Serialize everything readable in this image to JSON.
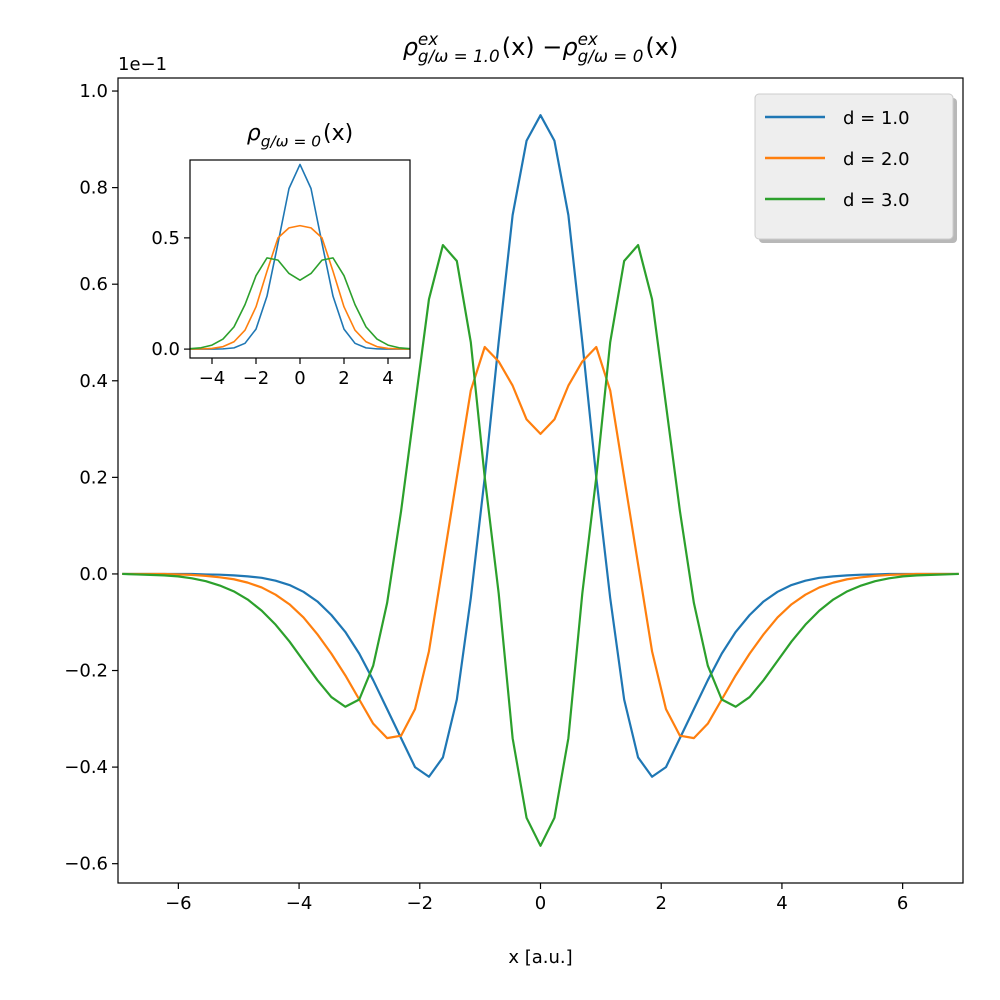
{
  "chart_data": [
    {
      "type": "line",
      "title_parts": [
        {
          "base": "ρ",
          "sup": "ex",
          "sub": "g/ω = 1.0",
          "after": "(x) − "
        },
        {
          "base": "ρ",
          "sup": "ex",
          "sub": "g/ω = 0",
          "after": "(x)"
        }
      ],
      "xlabel": "x [a.u.]",
      "offset_text": "1e−1",
      "xlim": [
        -7,
        7
      ],
      "ylim": [
        -0.64,
        1.027
      ],
      "xticks": [
        {
          "value": -6,
          "label": "−6"
        },
        {
          "value": -4,
          "label": "−4"
        },
        {
          "value": -2,
          "label": "−2"
        },
        0,
        2,
        4,
        6
      ],
      "yticks": [
        {
          "value": -0.6,
          "label": "−0.6"
        },
        {
          "value": -0.4,
          "label": "−0.4"
        },
        {
          "value": -0.2,
          "label": "−0.2"
        },
        {
          "value": 0,
          "label": "0.0"
        },
        0.2,
        0.4,
        0.6,
        0.8,
        {
          "value": 1,
          "label": "1.0"
        }
      ],
      "legend": "upper right",
      "x": [
        -6.93,
        -6.699,
        -6.468,
        -6.237,
        -6.006,
        -5.775,
        -5.544,
        -5.313,
        -5.082,
        -4.851,
        -4.62,
        -4.389,
        -4.158,
        -3.927,
        -3.696,
        -3.465,
        -3.234,
        -3.003,
        -2.772,
        -2.541,
        -2.31,
        -2.079,
        -1.848,
        -1.617,
        -1.386,
        -1.155,
        -0.924,
        -0.693,
        -0.462,
        -0.231,
        0,
        0.231,
        0.462,
        0.693,
        0.924,
        1.155,
        1.386,
        1.617,
        1.848,
        2.079,
        2.31,
        2.541,
        2.772,
        3.003,
        3.234,
        3.465,
        3.696,
        3.927,
        4.158,
        4.389,
        4.62,
        4.851,
        5.082,
        5.313,
        5.544,
        5.775,
        6.006,
        6.237,
        6.468,
        6.699,
        6.93
      ],
      "series": [
        {
          "name": "d = 1.0",
          "color": "#1f77b4",
          "values": [
            0,
            0,
            0,
            0,
            0,
            0,
            -0.001,
            -0.0015,
            -0.003,
            -0.005,
            -0.008,
            -0.014,
            -0.023,
            -0.037,
            -0.057,
            -0.085,
            -0.12,
            -0.165,
            -0.22,
            -0.28,
            -0.34,
            -0.4,
            -0.42,
            -0.38,
            -0.26,
            -0.05,
            0.2,
            0.48,
            0.743,
            0.897,
            0.95,
            0.897,
            0.743,
            0.48,
            0.2,
            -0.05,
            -0.26,
            -0.38,
            -0.42,
            -0.4,
            -0.34,
            -0.28,
            -0.22,
            -0.165,
            -0.12,
            -0.085,
            -0.057,
            -0.037,
            -0.023,
            -0.014,
            -0.008,
            -0.005,
            -0.003,
            -0.0015,
            -0.001,
            0,
            0,
            0,
            0,
            0,
            0
          ]
        },
        {
          "name": "d = 2.0",
          "color": "#ff7f0e",
          "values": [
            0,
            0,
            0,
            0,
            -0.001,
            -0.002,
            -0.004,
            -0.007,
            -0.011,
            -0.018,
            -0.028,
            -0.043,
            -0.063,
            -0.09,
            -0.125,
            -0.165,
            -0.21,
            -0.26,
            -0.31,
            -0.34,
            -0.335,
            -0.28,
            -0.16,
            0.02,
            0.2,
            0.38,
            0.47,
            0.44,
            0.39,
            0.32,
            0.29,
            0.32,
            0.39,
            0.44,
            0.47,
            0.38,
            0.2,
            0.02,
            -0.16,
            -0.28,
            -0.335,
            -0.34,
            -0.31,
            -0.26,
            -0.21,
            -0.165,
            -0.125,
            -0.09,
            -0.063,
            -0.043,
            -0.028,
            -0.018,
            -0.011,
            -0.007,
            -0.004,
            -0.002,
            -0.001,
            0,
            0,
            0,
            0
          ]
        },
        {
          "name": "d = 3.0",
          "color": "#2ca02c",
          "values": [
            0,
            -0.001,
            -0.002,
            -0.003,
            -0.005,
            -0.009,
            -0.015,
            -0.024,
            -0.036,
            -0.053,
            -0.076,
            -0.105,
            -0.14,
            -0.18,
            -0.22,
            -0.255,
            -0.275,
            -0.26,
            -0.19,
            -0.06,
            0.13,
            0.35,
            0.569,
            0.681,
            0.648,
            0.48,
            0.2,
            -0.04,
            -0.34,
            -0.505,
            -0.563,
            -0.505,
            -0.34,
            -0.04,
            0.2,
            0.48,
            0.648,
            0.681,
            0.569,
            0.35,
            0.13,
            -0.06,
            -0.19,
            -0.26,
            -0.275,
            -0.255,
            -0.22,
            -0.18,
            -0.14,
            -0.105,
            -0.076,
            -0.053,
            -0.036,
            -0.024,
            -0.015,
            -0.009,
            -0.005,
            -0.003,
            -0.002,
            -0.001,
            0
          ]
        }
      ]
    },
    {
      "type": "line",
      "title_parts": [
        {
          "base": "ρ",
          "sub": "g/ω = 0",
          "after": "(x)"
        }
      ],
      "xlim": [
        -5,
        5
      ],
      "ylim": [
        -0.04,
        0.85
      ],
      "xticks": [
        {
          "value": -4,
          "label": "−4"
        },
        {
          "value": -2,
          "label": "−2"
        },
        0,
        2,
        4
      ],
      "yticks": [
        {
          "value": 0,
          "label": "0.0"
        },
        0.5
      ],
      "x": [
        -5,
        -4.5,
        -4,
        -3.5,
        -3,
        -2.5,
        -2,
        -1.5,
        -1,
        -0.5,
        0,
        0.5,
        1,
        1.5,
        2,
        2.5,
        3,
        3.5,
        4,
        4.5,
        5
      ],
      "series": [
        {
          "color": "#1f77b4",
          "values": [
            0,
            0,
            0,
            0.001,
            0.0056,
            0.026,
            0.09,
            0.238,
            0.476,
            0.722,
            0.83,
            0.722,
            0.476,
            0.238,
            0.09,
            0.026,
            0.0056,
            0.001,
            0,
            0,
            0
          ]
        },
        {
          "color": "#ff7f0e",
          "values": [
            0,
            0.001,
            0.003,
            0.011,
            0.033,
            0.085,
            0.19,
            0.35,
            0.5,
            0.545,
            0.555,
            0.545,
            0.5,
            0.35,
            0.19,
            0.085,
            0.033,
            0.011,
            0.003,
            0.001,
            0
          ]
        },
        {
          "color": "#2ca02c",
          "values": [
            0.002,
            0.006,
            0.018,
            0.045,
            0.1,
            0.2,
            0.33,
            0.41,
            0.4,
            0.34,
            0.31,
            0.34,
            0.4,
            0.41,
            0.33,
            0.2,
            0.1,
            0.045,
            0.018,
            0.006,
            0.002
          ]
        }
      ]
    }
  ]
}
